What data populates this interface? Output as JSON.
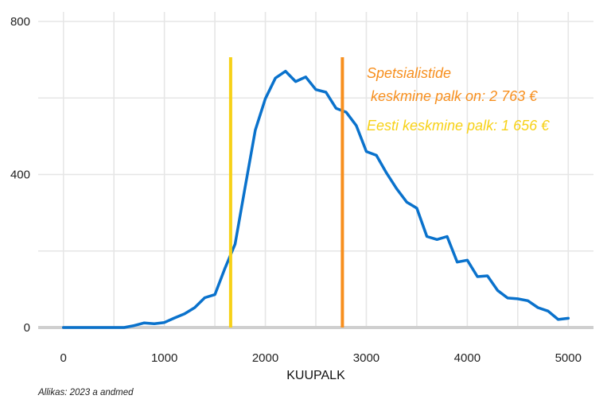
{
  "chart_data": {
    "type": "line",
    "xlabel": "KUUPALK",
    "ylabel": "",
    "xlim": [
      -250,
      5250
    ],
    "ylim": [
      0,
      800
    ],
    "xticks": [
      0,
      1000,
      2000,
      3000,
      4000,
      5000
    ],
    "yticks": [
      0,
      400,
      800
    ],
    "grid": true,
    "series": [
      {
        "color": "#0a72cc",
        "x": [
          0,
          100,
          200,
          300,
          400,
          500,
          600,
          700,
          800,
          900,
          1000,
          1100,
          1200,
          1300,
          1400,
          1500,
          1600,
          1700,
          1800,
          1900,
          2000,
          2100,
          2200,
          2300,
          2400,
          2500,
          2600,
          2700,
          2800,
          2900,
          3000,
          3100,
          3200,
          3300,
          3400,
          3500,
          3600,
          3700,
          3800,
          3900,
          4000,
          4100,
          4200,
          4300,
          4400,
          4500,
          4600,
          4700,
          4800,
          4900,
          5000
        ],
        "y": [
          0,
          0,
          0,
          0,
          0,
          0,
          0,
          5,
          12,
          10,
          13,
          25,
          36,
          52,
          78,
          86,
          155,
          218,
          368,
          516,
          598,
          652,
          670,
          643,
          655,
          622,
          615,
          573,
          563,
          528,
          460,
          450,
          404,
          363,
          328,
          312,
          238,
          230,
          238,
          171,
          176,
          133,
          135,
          97,
          77,
          75,
          70,
          52,
          43,
          21,
          24
        ]
      }
    ],
    "vlines": [
      {
        "x": 1656,
        "color": "#f7d117"
      },
      {
        "x": 2763,
        "color": "#f78f1e"
      }
    ],
    "annotations": [
      {
        "lines": [
          "Spetsialistide",
          " keskmine palk on: 2 763 €"
        ],
        "color": "#f78f1e"
      },
      {
        "lines": [
          "Eesti keskmine palk: 1 656 €"
        ],
        "color": "#f7d117"
      }
    ]
  },
  "source_note": "Allikas: 2023 a andmed"
}
